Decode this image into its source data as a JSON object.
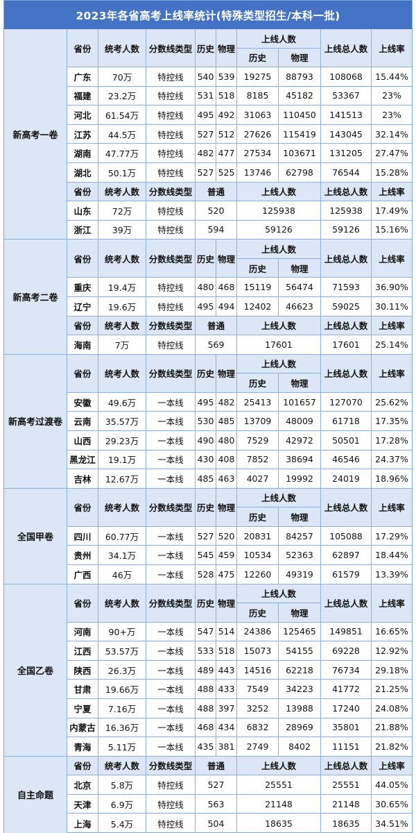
{
  "title": "2023年各省高考上线率统计(特殊类型招生/本科一批)",
  "headers": {
    "province": "省份",
    "examinees": "统考人数",
    "line_type": "分数线类型",
    "history": "历史",
    "physics": "物理",
    "online_count": "上线人数",
    "total_online": "上线总人数",
    "rate": "上线率",
    "general": "普通"
  },
  "groups": [
    {
      "name": "新高考一卷",
      "blocks": [
        {
          "kind": "split",
          "rows": [
            {
              "province": "广东",
              "examinees": "70万",
              "line_type": "特控线",
              "history_line": "540",
              "physics_line": "539",
              "history_count": "19275",
              "physics_count": "88793",
              "total": "108068",
              "rate": "15.44%"
            },
            {
              "province": "福建",
              "examinees": "23.2万",
              "line_type": "特控线",
              "history_line": "531",
              "physics_line": "518",
              "history_count": "8185",
              "physics_count": "45182",
              "total": "53367",
              "rate": "23%"
            },
            {
              "province": "河北",
              "examinees": "61.54万",
              "line_type": "特控线",
              "history_line": "495",
              "physics_line": "492",
              "history_count": "31063",
              "physics_count": "110450",
              "total": "141513",
              "rate": "23%"
            },
            {
              "province": "江苏",
              "examinees": "44.5万",
              "line_type": "特控线",
              "history_line": "527",
              "physics_line": "512",
              "history_count": "27626",
              "physics_count": "115419",
              "total": "143045",
              "rate": "32.14%"
            },
            {
              "province": "湖南",
              "examinees": "47.77万",
              "line_type": "特控线",
              "history_line": "482",
              "physics_line": "477",
              "history_count": "27534",
              "physics_count": "103671",
              "total": "131205",
              "rate": "27.47%"
            },
            {
              "province": "湖北",
              "examinees": "50.1万",
              "line_type": "特控线",
              "history_line": "527",
              "physics_line": "525",
              "history_count": "13746",
              "physics_count": "62798",
              "total": "76544",
              "rate": "15.28%"
            }
          ]
        },
        {
          "kind": "general",
          "rows": [
            {
              "province": "山东",
              "examinees": "72万",
              "line_type": "特控线",
              "general_line": "520",
              "count": "125938",
              "total": "125938",
              "rate": "17.49%"
            },
            {
              "province": "浙江",
              "examinees": "39万",
              "line_type": "特控线",
              "general_line": "594",
              "count": "59126",
              "total": "59126",
              "rate": "15.16%"
            }
          ]
        }
      ]
    },
    {
      "name": "新高考二卷",
      "blocks": [
        {
          "kind": "split",
          "rows": [
            {
              "province": "重庆",
              "examinees": "19.4万",
              "line_type": "特控线",
              "history_line": "480",
              "physics_line": "468",
              "history_count": "15119",
              "physics_count": "56474",
              "total": "71593",
              "rate": "36.90%"
            },
            {
              "province": "辽宁",
              "examinees": "19.6万",
              "line_type": "特控线",
              "history_line": "495",
              "physics_line": "494",
              "history_count": "12402",
              "physics_count": "46623",
              "total": "59025",
              "rate": "30.11%"
            }
          ]
        },
        {
          "kind": "general",
          "rows": [
            {
              "province": "海南",
              "examinees": "7万",
              "line_type": "特控线",
              "general_line": "569",
              "count": "17601",
              "total": "17601",
              "rate": "25.14%"
            }
          ]
        }
      ]
    },
    {
      "name": "新高考过渡卷",
      "blocks": [
        {
          "kind": "split",
          "rows": [
            {
              "province": "安徽",
              "examinees": "49.6万",
              "line_type": "一本线",
              "history_line": "495",
              "physics_line": "482",
              "history_count": "25413",
              "physics_count": "101657",
              "total": "127070",
              "rate": "25.62%"
            },
            {
              "province": "云南",
              "examinees": "35.57万",
              "line_type": "一本线",
              "history_line": "530",
              "physics_line": "485",
              "history_count": "13709",
              "physics_count": "48009",
              "total": "61718",
              "rate": "17.35%"
            },
            {
              "province": "山西",
              "examinees": "29.23万",
              "line_type": "一本线",
              "history_line": "490",
              "physics_line": "480",
              "history_count": "7529",
              "physics_count": "42972",
              "total": "50501",
              "rate": "17.28%"
            },
            {
              "province": "黑龙江",
              "examinees": "19.1万",
              "line_type": "一本线",
              "history_line": "430",
              "physics_line": "408",
              "history_count": "7852",
              "physics_count": "38694",
              "total": "46546",
              "rate": "24.37%"
            },
            {
              "province": "吉林",
              "examinees": "12.67万",
              "line_type": "一本线",
              "history_line": "485",
              "physics_line": "463",
              "history_count": "4027",
              "physics_count": "19992",
              "total": "24019",
              "rate": "18.96%"
            }
          ]
        }
      ]
    },
    {
      "name": "全国甲卷",
      "blocks": [
        {
          "kind": "split",
          "rows": [
            {
              "province": "四川",
              "examinees": "60.77万",
              "line_type": "一本线",
              "history_line": "527",
              "physics_line": "520",
              "history_count": "20831",
              "physics_count": "84257",
              "total": "105088",
              "rate": "17.29%"
            },
            {
              "province": "贵州",
              "examinees": "34.1万",
              "line_type": "一本线",
              "history_line": "545",
              "physics_line": "459",
              "history_count": "10534",
              "physics_count": "52363",
              "total": "62897",
              "rate": "18.44%"
            },
            {
              "province": "广西",
              "examinees": "46万",
              "line_type": "一本线",
              "history_line": "528",
              "physics_line": "475",
              "history_count": "12260",
              "physics_count": "49319",
              "total": "61579",
              "rate": "13.39%"
            }
          ]
        }
      ]
    },
    {
      "name": "全国乙卷",
      "blocks": [
        {
          "kind": "split",
          "rows": [
            {
              "province": "河南",
              "examinees": "90+万",
              "line_type": "一本线",
              "history_line": "547",
              "physics_line": "514",
              "history_count": "24386",
              "physics_count": "125465",
              "total": "149851",
              "rate": "16.65%"
            },
            {
              "province": "江西",
              "examinees": "53.57万",
              "line_type": "一本线",
              "history_line": "533",
              "physics_line": "518",
              "history_count": "15073",
              "physics_count": "54155",
              "total": "69228",
              "rate": "12.92%"
            },
            {
              "province": "陕西",
              "examinees": "26.3万",
              "line_type": "一本线",
              "history_line": "489",
              "physics_line": "443",
              "history_count": "14516",
              "physics_count": "62218",
              "total": "76734",
              "rate": "29.18%"
            },
            {
              "province": "甘肃",
              "examinees": "19.66万",
              "line_type": "一本线",
              "history_line": "488",
              "physics_line": "433",
              "history_count": "7549",
              "physics_count": "34223",
              "total": "41772",
              "rate": "21.25%"
            },
            {
              "province": "宁夏",
              "examinees": "7.16万",
              "line_type": "一本线",
              "history_line": "488",
              "physics_line": "397",
              "history_count": "3252",
              "physics_count": "13988",
              "total": "17240",
              "rate": "24.08%"
            },
            {
              "province": "内蒙古",
              "examinees": "16.36万",
              "line_type": "一本线",
              "history_line": "468",
              "physics_line": "434",
              "history_count": "6832",
              "physics_count": "28969",
              "total": "35801",
              "rate": "21.88%"
            },
            {
              "province": "青海",
              "examinees": "5.11万",
              "line_type": "一本线",
              "history_line": "435",
              "physics_line": "381",
              "history_count": "2749",
              "physics_count": "8402",
              "total": "11151",
              "rate": "21.82%"
            }
          ]
        }
      ]
    },
    {
      "name": "自主命题",
      "blocks": [
        {
          "kind": "general",
          "rows": [
            {
              "province": "北京",
              "examinees": "5.8万",
              "line_type": "特控线",
              "general_line": "527",
              "count": "25551",
              "total": "25551",
              "rate": "44.05%"
            },
            {
              "province": "天津",
              "examinees": "6.9万",
              "line_type": "特控线",
              "general_line": "563",
              "count": "21148",
              "total": "21148",
              "rate": "30.65%"
            },
            {
              "province": "上海",
              "examinees": "5.4万",
              "line_type": "特控线",
              "general_line": "504",
              "count": "18635",
              "total": "18635",
              "rate": "34.51%"
            }
          ]
        }
      ]
    }
  ],
  "colors": {
    "title_bg": "#4472c4",
    "header_bg": "#dbe7f6",
    "grid": "#8bb0de"
  }
}
